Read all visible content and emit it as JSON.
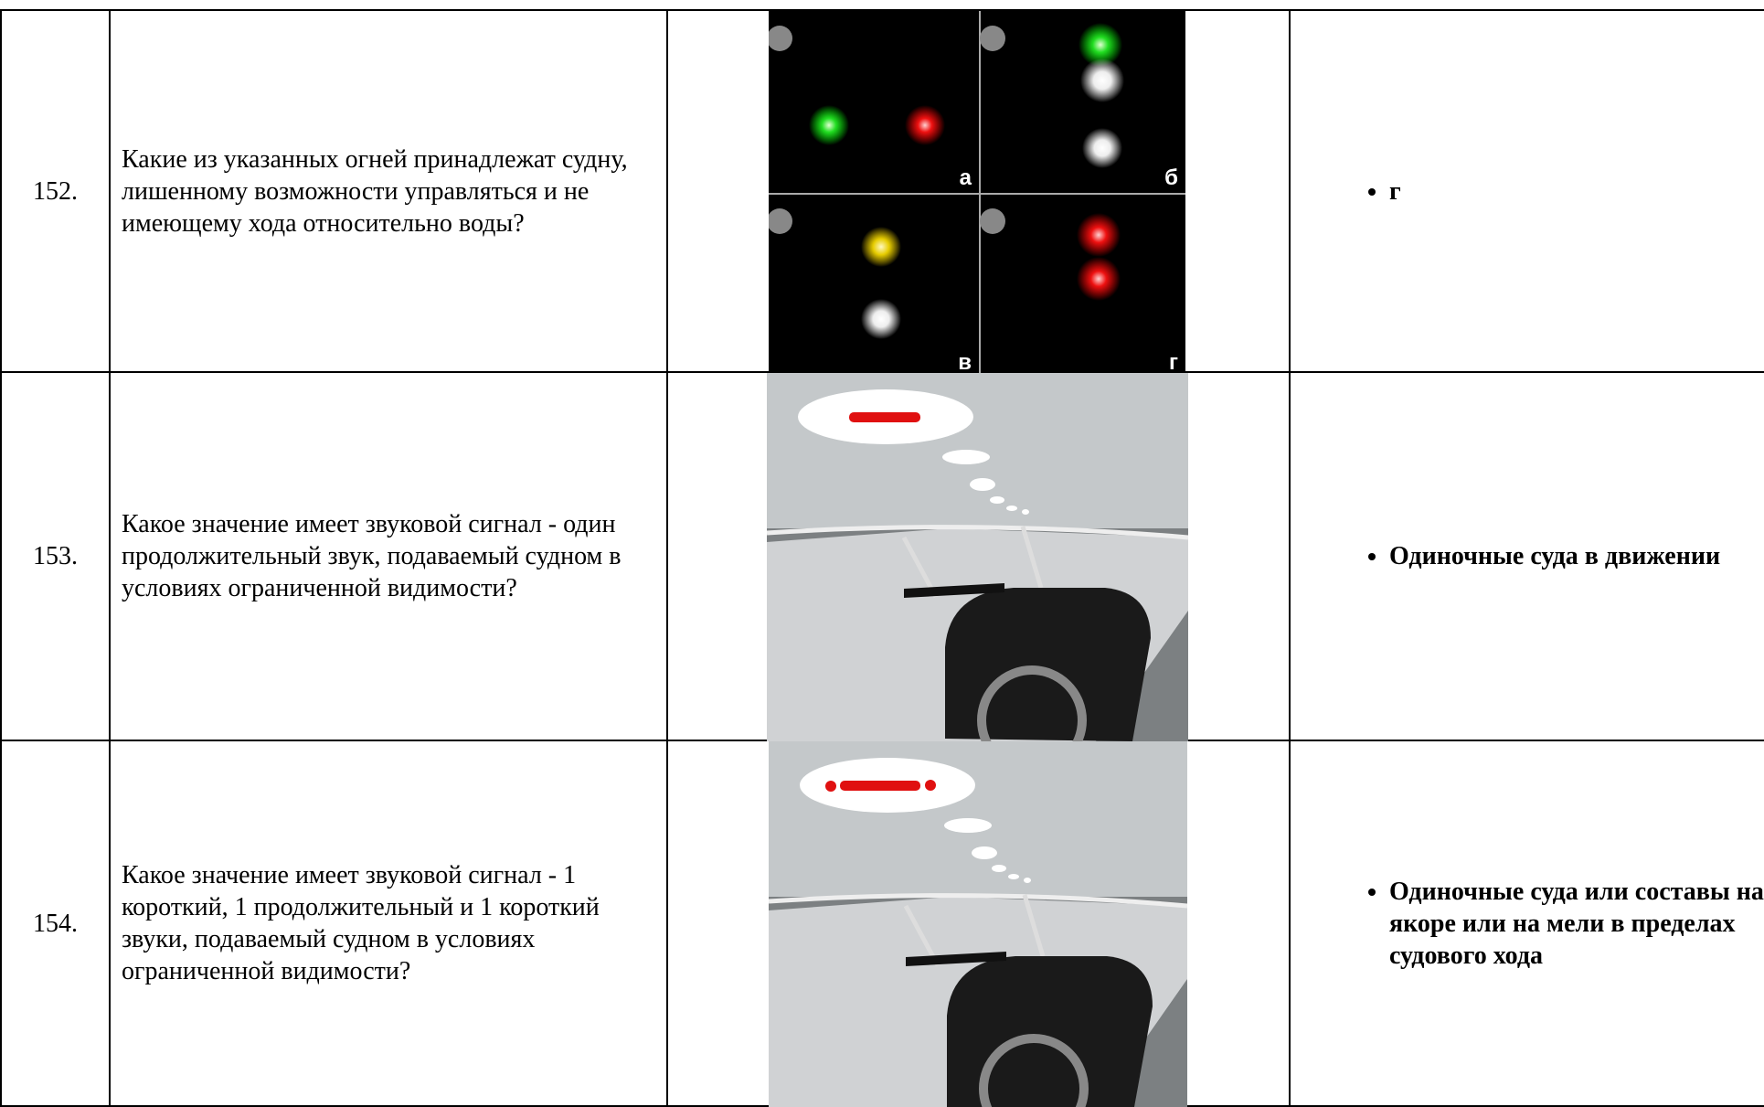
{
  "table": {
    "rows": [
      {
        "number": "152.",
        "question": "Какие из указанных огней принадлежат судну, лишенному возможности управляться и не имеющему хода относительно воды?",
        "image_labels": [
          "а",
          "б",
          "в",
          "г"
        ],
        "answer": "г"
      },
      {
        "number": "153.",
        "question": "Какое значение имеет звуковой сигнал - один продолжительный звук, подаваемый судном в условиях ограниченной видимости?",
        "answer": "Одиночные суда в движении"
      },
      {
        "number": "154.",
        "question": "Какое значение имеет звуковой сигнал - 1 короткий, 1 продолжительный и 1 короткий звуки, подаваемый судном в условиях ограниченной видимости?",
        "answer": "Одиночные суда или составы на якоре или на мели в пределах судового хода"
      }
    ]
  }
}
